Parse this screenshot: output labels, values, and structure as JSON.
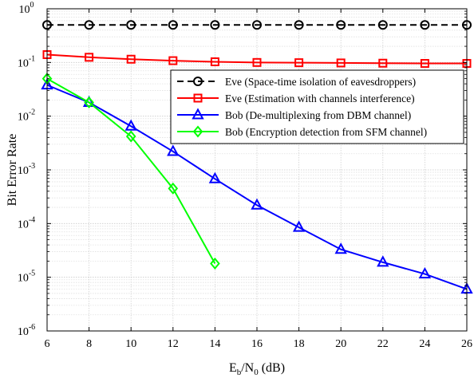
{
  "chart_data": {
    "type": "line",
    "xlabel": {
      "base": "E",
      "sub1": "b",
      "mid": "/N",
      "sub2": "0",
      "tail": " (dB)"
    },
    "ylabel": "Bit Error Rate",
    "xlim": [
      6,
      26
    ],
    "ylim": [
      1e-06,
      1
    ],
    "yscale": "log",
    "grid": true,
    "legend_position": "upper right",
    "xticks": [
      "6",
      "8",
      "10",
      "12",
      "14",
      "16",
      "18",
      "20",
      "22",
      "24",
      "26"
    ],
    "yticks": [
      {
        "base": "10",
        "exp": "0"
      },
      {
        "base": "10",
        "exp": "-1"
      },
      {
        "base": "10",
        "exp": "-2"
      },
      {
        "base": "10",
        "exp": "-3"
      },
      {
        "base": "10",
        "exp": "-4"
      },
      {
        "base": "10",
        "exp": "-5"
      },
      {
        "base": "10",
        "exp": "-6"
      }
    ],
    "series": [
      {
        "name": "Eve (Space-time isolation of eavesdroppers)",
        "color": "#000000",
        "line_style": "dashed",
        "marker": "circle",
        "x": [
          6,
          8,
          10,
          12,
          14,
          16,
          18,
          20,
          22,
          24,
          26
        ],
        "y": [
          0.5,
          0.5,
          0.5,
          0.5,
          0.5,
          0.5,
          0.5,
          0.5,
          0.5,
          0.5,
          0.5
        ]
      },
      {
        "name": "Eve (Estimation with channels interference)",
        "color": "#ff0000",
        "line_style": "solid",
        "marker": "square",
        "x": [
          6,
          8,
          10,
          12,
          14,
          16,
          18,
          20,
          22,
          24,
          26
        ],
        "y": [
          0.14,
          0.125,
          0.115,
          0.108,
          0.103,
          0.1,
          0.099,
          0.098,
          0.097,
          0.096,
          0.096
        ]
      },
      {
        "name": "Bob (De-multiplexing from DBM channel)",
        "color": "#0000ff",
        "line_style": "solid",
        "marker": "triangle",
        "x": [
          6,
          8,
          10,
          12,
          14,
          16,
          18,
          20,
          22,
          24,
          26
        ],
        "y": [
          0.038,
          0.018,
          0.0065,
          0.0022,
          0.00068,
          0.00022,
          8.5e-05,
          3.3e-05,
          1.9e-05,
          1.15e-05,
          6e-06
        ]
      },
      {
        "name": "Bob (Encryption detection from SFM channel)",
        "color": "#00ff00",
        "line_style": "solid",
        "marker": "diamond",
        "x": [
          6,
          8,
          10,
          12,
          14
        ],
        "y": [
          0.05,
          0.018,
          0.0042,
          0.00045,
          1.8e-05
        ]
      }
    ]
  }
}
